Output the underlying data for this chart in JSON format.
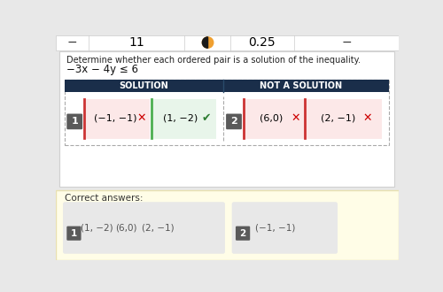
{
  "bg_color": "#e8e8e8",
  "top_bar_bg": "#ffffff",
  "question_text": "Determine whether each ordered pair is a solution of the inequality.",
  "inequality": "−3x − 4y ≤ 6",
  "header_bg": "#1a2e4a",
  "header_text_color": "#ffffff",
  "solution_header": "SOLUTION",
  "not_solution_header": "NOT A SOLUTION",
  "box_label_bg": "#5a5a5a",
  "box_label_text": "#ffffff",
  "pair1_wrong": "(−1, −1)",
  "pair1_right": "(1, −2)",
  "pair2_wrong1": "(6,0)",
  "pair2_wrong2": "(2, −1)",
  "red_bg": "#fce8e8",
  "green_bg": "#e8f5ea",
  "divider_red": "#cc3333",
  "divider_green": "#4caf50",
  "cross_color": "#cc0000",
  "check_color": "#2e7d32",
  "correct_section_bg": "#fffde7",
  "correct_section_border": "#e8e0b0",
  "correct_text": "Correct answers:",
  "correct_box_bg": "#e8e8e8",
  "correct_1_items": [
    "(1, −2)",
    "(6,0)",
    "(2, −1)"
  ],
  "correct_2_items": [
    "(−1, −1)"
  ],
  "card_bg": "#ffffff",
  "card_inner_bg": "#f0f0f0",
  "dashed_border": "#aaaaaa",
  "top_minus_color": "#333333",
  "icon_orange": "#f0a030",
  "icon_dark": "#1a1a1a"
}
